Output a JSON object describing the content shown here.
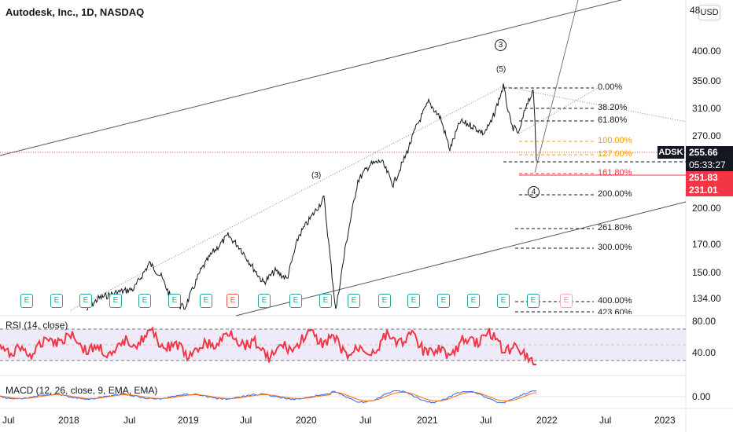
{
  "header": {
    "title": "Autodesk, Inc., 1D, NASDAQ",
    "currency": "USD"
  },
  "price_axis": {
    "ticks": [
      "400.00",
      "350.00",
      "310.00",
      "270.00",
      "200.00",
      "170.00",
      "150.00",
      "134.00"
    ],
    "partial_top": "48"
  },
  "current": {
    "symbol": "ADSK",
    "price": "255.66",
    "countdown": "05:33:27",
    "line_price": "251.83",
    "fib_price": "231.01"
  },
  "fib_levels": [
    "0.00%",
    "38.20%",
    "61.80%",
    "100.00%",
    "127.00%",
    "161.80%",
    "200.00%",
    "261.80%",
    "300.00%",
    "400.00%"
  ],
  "fib_partial": "423.60%",
  "wave_labels": {
    "w3_big": "3",
    "w5": "(5)",
    "w3_small": "(3)",
    "w4_big": "4"
  },
  "earnings": {
    "label": "E"
  },
  "rsi": {
    "label": "RSI (14, close)",
    "ticks": [
      "80.00",
      "40.00"
    ]
  },
  "macd": {
    "label": "MACD (12, 26, close, 9, EMA, EMA)",
    "ticks": [
      "0.00"
    ]
  },
  "time_axis": [
    "Jul",
    "2018",
    "Jul",
    "2019",
    "Jul",
    "2020",
    "Jul",
    "2021",
    "Jul",
    "2022",
    "Jul",
    "2023"
  ],
  "colors": {
    "candle": "#131722",
    "rsi_line": "#f23645",
    "rsi_band": "#efeaf8",
    "macd_line": "#2962ff",
    "signal_line": "#ff6d00",
    "fib_orange": "#ff9800",
    "fib_red": "#f23645",
    "earnings_green": "#26a69a"
  }
}
